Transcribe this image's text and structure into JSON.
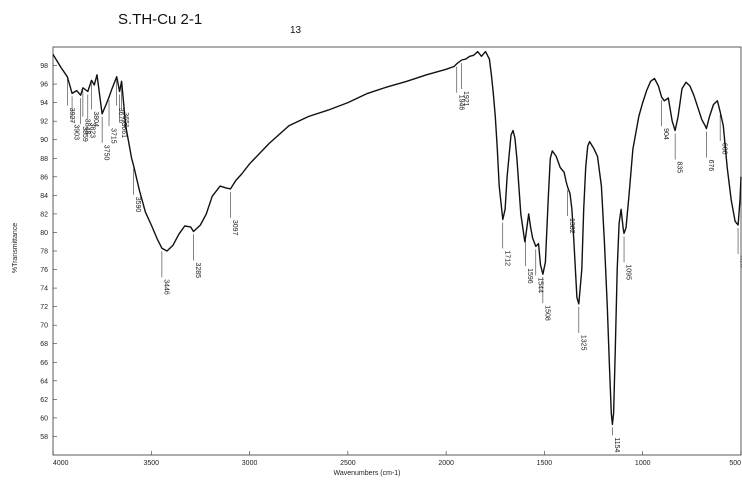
{
  "chart_data": {
    "type": "line",
    "title": "S.TH-Cu 2-1",
    "subtitle": "13",
    "xlabel": "Wavenumbers (cm-1)",
    "ylabel": "%Transmittance",
    "xlim": [
      4000,
      500
    ],
    "x_reversed": true,
    "ylim": [
      56,
      100
    ],
    "x_ticks": [
      4000,
      3500,
      3000,
      2500,
      2000,
      1500,
      1000,
      500
    ],
    "y_ticks": [
      58,
      60,
      62,
      64,
      66,
      68,
      70,
      72,
      74,
      76,
      78,
      80,
      82,
      84,
      86,
      88,
      90,
      92,
      94,
      96,
      98
    ],
    "grid": false,
    "series": [
      {
        "x": [
          4000,
          3960,
          3927,
          3903,
          3880,
          3859,
          3848,
          3823,
          3804,
          3790,
          3776,
          3750,
          3730,
          3715,
          3700,
          3676,
          3661,
          3651,
          3630,
          3600,
          3590,
          3560,
          3530,
          3500,
          3470,
          3446,
          3420,
          3390,
          3360,
          3330,
          3300,
          3285,
          3250,
          3220,
          3190,
          3150,
          3120,
          3097,
          3070,
          3040,
          3000,
          2900,
          2800,
          2700,
          2600,
          2500,
          2400,
          2300,
          2200,
          2100,
          2000,
          1960,
          1946,
          1921,
          1900,
          1880,
          1860,
          1840,
          1820,
          1800,
          1780,
          1770,
          1760,
          1750,
          1740,
          1730,
          1712,
          1700,
          1690,
          1670,
          1660,
          1650,
          1640,
          1620,
          1600,
          1596,
          1580,
          1570,
          1560,
          1544,
          1530,
          1520,
          1508,
          1495,
          1480,
          1470,
          1460,
          1440,
          1420,
          1400,
          1390,
          1382,
          1370,
          1360,
          1350,
          1335,
          1325,
          1310,
          1300,
          1290,
          1280,
          1270,
          1250,
          1230,
          1210,
          1195,
          1180,
          1170,
          1160,
          1154,
          1148,
          1140,
          1130,
          1120,
          1110,
          1100,
          1095,
          1085,
          1070,
          1050,
          1020,
          1000,
          980,
          960,
          940,
          920,
          904,
          890,
          870,
          850,
          835,
          820,
          800,
          780,
          760,
          740,
          720,
          700,
          680,
          676,
          660,
          640,
          620,
          606,
          590,
          570,
          550,
          530,
          515,
          505,
          500
        ],
        "y": [
          99.2,
          97.8,
          96.8,
          95.0,
          95.3,
          94.8,
          95.6,
          95.2,
          96.4,
          95.9,
          97.0,
          92.8,
          93.8,
          94.6,
          95.5,
          96.8,
          95.2,
          96.3,
          91.5,
          88.0,
          87.2,
          84.5,
          82.2,
          80.8,
          79.3,
          78.3,
          78.0,
          78.6,
          79.8,
          80.7,
          80.6,
          80.1,
          80.8,
          82.0,
          83.9,
          85.0,
          84.8,
          84.7,
          85.6,
          86.3,
          87.4,
          89.6,
          91.5,
          92.5,
          93.2,
          94.0,
          95.0,
          95.7,
          96.3,
          97.0,
          97.6,
          97.9,
          98.2,
          98.6,
          98.7,
          99.0,
          99.1,
          99.5,
          99.0,
          99.5,
          98.7,
          97.0,
          95.0,
          92.5,
          89.0,
          85.0,
          81.4,
          82.5,
          86.0,
          90.5,
          91.0,
          90.2,
          88.0,
          82.0,
          79.0,
          79.5,
          82.0,
          80.5,
          79.4,
          78.5,
          78.8,
          76.5,
          75.5,
          76.8,
          84.0,
          88.0,
          88.8,
          88.2,
          87.0,
          86.5,
          85.5,
          84.9,
          84.2,
          82.5,
          79.0,
          73.0,
          72.3,
          76.0,
          82.5,
          87.0,
          89.3,
          89.8,
          89.1,
          88.2,
          85.0,
          79.0,
          72.0,
          66.0,
          60.5,
          59.3,
          60.5,
          67.0,
          76.0,
          81.0,
          82.5,
          80.5,
          79.9,
          80.5,
          84.0,
          89.0,
          92.5,
          94.0,
          95.3,
          96.3,
          96.6,
          95.8,
          94.6,
          94.2,
          94.5,
          92.0,
          91.0,
          92.5,
          95.5,
          96.2,
          95.8,
          94.8,
          93.5,
          92.2,
          91.4,
          91.2,
          92.5,
          93.8,
          94.2,
          93.0,
          91.5,
          87.0,
          83.5,
          81.2,
          80.8,
          83.5,
          86.0
        ]
      }
    ],
    "peaks": [
      {
        "label": "3927",
        "x": 3927
      },
      {
        "label": "3903",
        "x": 3903
      },
      {
        "label": "3859",
        "x": 3859
      },
      {
        "label": "3848",
        "x": 3848
      },
      {
        "label": "3823",
        "x": 3823
      },
      {
        "label": "3804",
        "x": 3804
      },
      {
        "label": "3750",
        "x": 3750
      },
      {
        "label": "3715",
        "x": 3715
      },
      {
        "label": "3676",
        "x": 3676
      },
      {
        "label": "3661",
        "x": 3661
      },
      {
        "label": "3651",
        "x": 3651
      },
      {
        "label": "3590",
        "x": 3590
      },
      {
        "label": "3446",
        "x": 3446
      },
      {
        "label": "3285",
        "x": 3285
      },
      {
        "label": "3097",
        "x": 3097
      },
      {
        "label": "1946",
        "x": 1946
      },
      {
        "label": "1921",
        "x": 1921
      },
      {
        "label": "1712",
        "x": 1712
      },
      {
        "label": "1596",
        "x": 1596
      },
      {
        "label": "1544",
        "x": 1544
      },
      {
        "label": "1508",
        "x": 1508
      },
      {
        "label": "1382",
        "x": 1382
      },
      {
        "label": "1325",
        "x": 1325
      },
      {
        "label": "1154",
        "x": 1154
      },
      {
        "label": "1095",
        "x": 1095
      },
      {
        "label": "904",
        "x": 904
      },
      {
        "label": "835",
        "x": 835
      },
      {
        "label": "676",
        "x": 676
      },
      {
        "label": "606",
        "x": 606
      },
      {
        "label": "515",
        "x": 515
      }
    ]
  }
}
